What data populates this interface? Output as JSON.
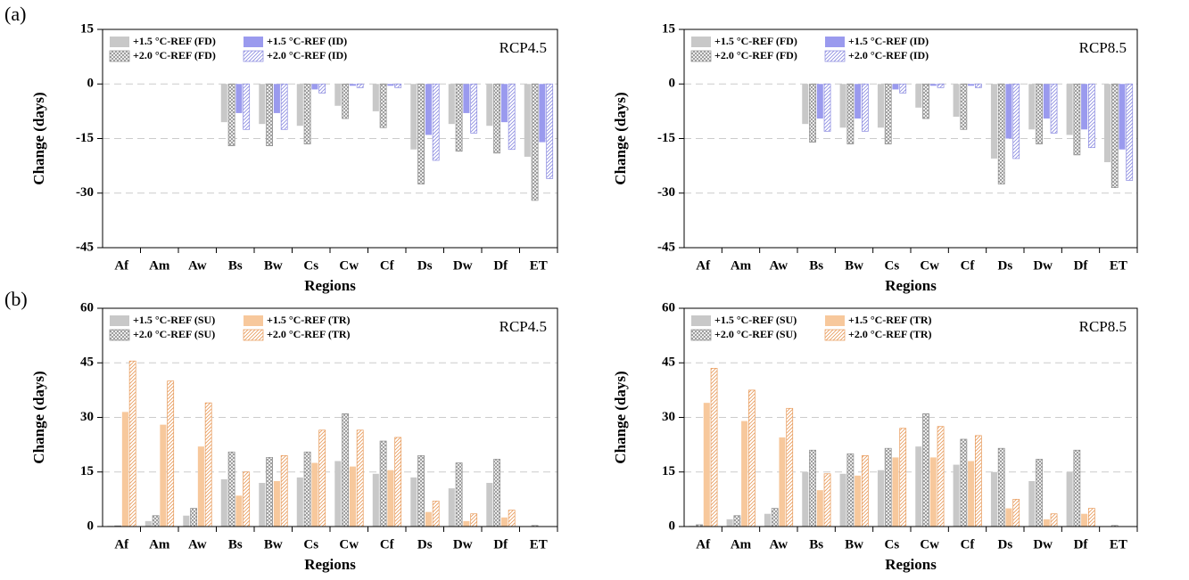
{
  "chart_data": [
    {
      "type": "bar",
      "panel_label": "(a)",
      "annotation": "RCP4.5",
      "ylabel": "Change (days)",
      "xlabel": "Regions",
      "categories": [
        "Af",
        "Am",
        "Aw",
        "Bs",
        "Bw",
        "Cs",
        "Cw",
        "Cf",
        "Ds",
        "Dw",
        "Df",
        "ET"
      ],
      "ylim": [
        -45,
        15
      ],
      "yticks": [
        -45,
        -30,
        -15,
        0,
        15
      ],
      "grid": true,
      "series": [
        {
          "name": "+1.5 °C-REF (FD)",
          "color": "#c8c8c8",
          "pattern": "solid",
          "values": [
            0,
            0,
            0,
            -10.5,
            -11,
            -11.5,
            -6,
            -7.5,
            -18,
            -11,
            -11.5,
            -20
          ]
        },
        {
          "name": "+2.0 °C-REF (FD)",
          "color": "#8c8c8c",
          "pattern": "crosshatch",
          "values": [
            0,
            0,
            0,
            -17,
            -17,
            -16.5,
            -9.5,
            -12,
            -27.5,
            -18.5,
            -19,
            -32
          ]
        },
        {
          "name": "+1.5 °C-REF (ID)",
          "color": "#9a9aee",
          "pattern": "solid",
          "values": [
            0,
            0,
            0,
            -8,
            -8,
            -1.5,
            -0.5,
            -0.5,
            -14,
            -8,
            -10.5,
            -16
          ]
        },
        {
          "name": "+2.0 °C-REF (ID)",
          "color": "#8a8ae0",
          "pattern": "hatch",
          "values": [
            0,
            0,
            0,
            -12.5,
            -12.5,
            -2.5,
            -1,
            -1,
            -21,
            -13.5,
            -18,
            -26
          ]
        }
      ]
    },
    {
      "type": "bar",
      "annotation": "RCP8.5",
      "ylabel": "Change (days)",
      "xlabel": "Regions",
      "categories": [
        "Af",
        "Am",
        "Aw",
        "Bs",
        "Bw",
        "Cs",
        "Cw",
        "Cf",
        "Ds",
        "Dw",
        "Df",
        "ET"
      ],
      "ylim": [
        -45,
        15
      ],
      "yticks": [
        -45,
        -30,
        -15,
        0,
        15
      ],
      "grid": true,
      "series": [
        {
          "name": "+1.5 °C-REF (FD)",
          "color": "#c8c8c8",
          "pattern": "solid",
          "values": [
            0,
            0,
            0,
            -11,
            -12,
            -12,
            -6.5,
            -9,
            -20.5,
            -12.5,
            -14,
            -21.5
          ]
        },
        {
          "name": "+2.0 °C-REF (FD)",
          "color": "#8c8c8c",
          "pattern": "crosshatch",
          "values": [
            0,
            0,
            0,
            -16,
            -16.5,
            -16.5,
            -9.5,
            -12.5,
            -27.5,
            -16.5,
            -19.5,
            -28.5
          ]
        },
        {
          "name": "+1.5 °C-REF (ID)",
          "color": "#9a9aee",
          "pattern": "solid",
          "values": [
            0,
            0,
            0,
            -9.5,
            -9.5,
            -1.5,
            -0.5,
            -0.5,
            -15,
            -9.5,
            -12.5,
            -18
          ]
        },
        {
          "name": "+2.0 °C-REF (ID)",
          "color": "#8a8ae0",
          "pattern": "hatch",
          "values": [
            0,
            0,
            0,
            -13,
            -13,
            -2.5,
            -1,
            -1,
            -20.5,
            -13.5,
            -17.5,
            -26.5
          ]
        }
      ]
    },
    {
      "type": "bar",
      "panel_label": "(b)",
      "annotation": "RCP4.5",
      "ylabel": "Change (days)",
      "xlabel": "Regions",
      "categories": [
        "Af",
        "Am",
        "Aw",
        "Bs",
        "Bw",
        "Cs",
        "Cw",
        "Cf",
        "Ds",
        "Dw",
        "Df",
        "ET"
      ],
      "ylim": [
        0,
        60
      ],
      "yticks": [
        0,
        15,
        30,
        45,
        60
      ],
      "grid": true,
      "series": [
        {
          "name": "+1.5 °C-REF (SU)",
          "color": "#c8c8c8",
          "pattern": "solid",
          "values": [
            0.2,
            1.5,
            3,
            13,
            12,
            13.5,
            18,
            14.5,
            13.5,
            10.5,
            12,
            0
          ]
        },
        {
          "name": "+2.0 °C-REF (SU)",
          "color": "#8c8c8c",
          "pattern": "crosshatch",
          "values": [
            0.2,
            3,
            5,
            20.5,
            19,
            20.5,
            31,
            23.5,
            19.5,
            17.5,
            18.5,
            0.3
          ]
        },
        {
          "name": "+1.5 °C-REF (TR)",
          "color": "#f7c89c",
          "pattern": "solid",
          "values": [
            31.5,
            28,
            22,
            8.5,
            12.5,
            17.5,
            16.5,
            15.5,
            4,
            1.5,
            2.5,
            0
          ]
        },
        {
          "name": "+2.0 °C-REF (TR)",
          "color": "#e89a5a",
          "pattern": "hatch",
          "values": [
            45.5,
            40,
            34,
            15,
            19.5,
            26.5,
            26.5,
            24.5,
            7,
            3.5,
            4.5,
            0
          ]
        }
      ]
    },
    {
      "type": "bar",
      "annotation": "RCP8.5",
      "ylabel": "Change (days)",
      "xlabel": "Regions",
      "categories": [
        "Af",
        "Am",
        "Aw",
        "Bs",
        "Bw",
        "Cs",
        "Cw",
        "Cf",
        "Ds",
        "Dw",
        "Df",
        "ET"
      ],
      "ylim": [
        0,
        60
      ],
      "yticks": [
        0,
        15,
        30,
        45,
        60
      ],
      "grid": true,
      "series": [
        {
          "name": "+1.5 °C-REF (SU)",
          "color": "#c8c8c8",
          "pattern": "solid",
          "values": [
            0.2,
            2,
            3.5,
            15,
            14.5,
            15.5,
            22,
            17,
            15,
            12.5,
            15,
            0
          ]
        },
        {
          "name": "+2.0 °C-REF (SU)",
          "color": "#8c8c8c",
          "pattern": "crosshatch",
          "values": [
            0.5,
            3,
            5,
            21,
            20,
            21.5,
            31,
            24,
            21.5,
            18.5,
            21,
            0.3
          ]
        },
        {
          "name": "+1.5 °C-REF (TR)",
          "color": "#f7c89c",
          "pattern": "solid",
          "values": [
            34,
            29,
            24.5,
            10,
            14,
            19,
            19,
            18,
            5,
            2,
            3.5,
            0
          ]
        },
        {
          "name": "+2.0 °C-REF (TR)",
          "color": "#e89a5a",
          "pattern": "hatch",
          "values": [
            43.5,
            37.5,
            32.5,
            14.5,
            19.5,
            27,
            27.5,
            25,
            7.5,
            3.5,
            5,
            0
          ]
        }
      ]
    }
  ]
}
